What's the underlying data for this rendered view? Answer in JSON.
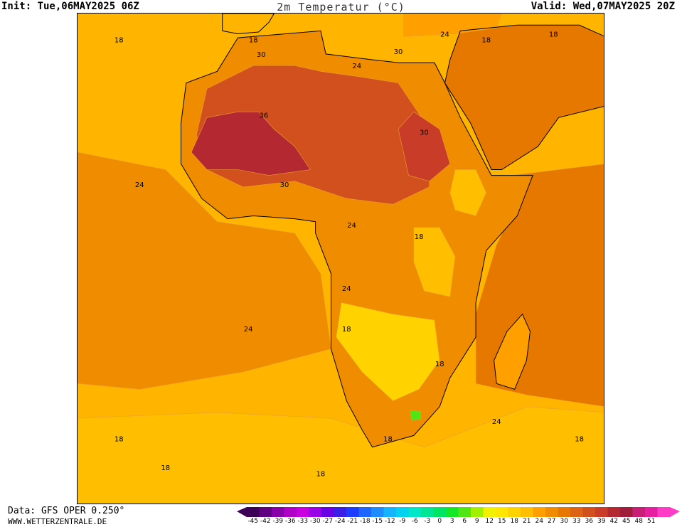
{
  "header": {
    "init": "Init: Tue,06MAY2025 06Z",
    "title": "2m Temperatur (°C)",
    "valid": "Valid: Wed,07MAY2025 20Z"
  },
  "footer": {
    "data_source": "Data: GFS OPER 0.250°",
    "website": "WWW.WETTERZENTRALE.DE"
  },
  "colorbar": {
    "labels": [
      "-45",
      "-42",
      "-39",
      "-36",
      "-33",
      "-30",
      "-27",
      "-24",
      "-21",
      "-18",
      "-15",
      "-12",
      "-9",
      "-6",
      "-3",
      "0",
      "3",
      "6",
      "9",
      "12",
      "15",
      "18",
      "21",
      "24",
      "27",
      "30",
      "33",
      "36",
      "39",
      "42",
      "45",
      "48",
      "51"
    ],
    "colors": [
      "#3d0057",
      "#5e0080",
      "#8a00a8",
      "#b000c8",
      "#c800e0",
      "#9a00e6",
      "#6a00e6",
      "#3a1ee6",
      "#1e3cff",
      "#1e64ff",
      "#1e8cff",
      "#14b4ff",
      "#00d2f0",
      "#00e6c8",
      "#00e696",
      "#00e664",
      "#14e628",
      "#50e614",
      "#a0f000",
      "#f0f000",
      "#ffe600",
      "#ffd200",
      "#ffbe00",
      "#ffa000",
      "#f08c00",
      "#e67800",
      "#dc6414",
      "#d2501e",
      "#c83c28",
      "#b42832",
      "#a01e3c",
      "#c81e78",
      "#e61ea0",
      "#ff3cc8"
    ],
    "under_color": "#3d0057",
    "over_color": "#ff3cc8"
  },
  "map": {
    "ocean_color": "#ffb400",
    "contour_labels": [
      {
        "text": "18",
        "lon": -29,
        "lat": 35
      },
      {
        "text": "18",
        "lon": -3,
        "lat": 35
      },
      {
        "text": "30",
        "lon": -1.5,
        "lat": 32.5
      },
      {
        "text": "24",
        "lon": 17,
        "lat": 30.5
      },
      {
        "text": "30",
        "lon": 25,
        "lat": 33
      },
      {
        "text": "36",
        "lon": -1,
        "lat": 22
      },
      {
        "text": "30",
        "lon": 30,
        "lat": 19
      },
      {
        "text": "24",
        "lon": -25,
        "lat": 10
      },
      {
        "text": "30",
        "lon": 3,
        "lat": 10
      },
      {
        "text": "24",
        "lon": 16,
        "lat": 3
      },
      {
        "text": "18",
        "lon": 29,
        "lat": 1
      },
      {
        "text": "24",
        "lon": 15,
        "lat": -8
      },
      {
        "text": "24",
        "lon": -4,
        "lat": -15
      },
      {
        "text": "18",
        "lon": 15,
        "lat": -15
      },
      {
        "text": "18",
        "lon": 33,
        "lat": -21
      },
      {
        "text": "24",
        "lon": 44,
        "lat": -31
      },
      {
        "text": "18",
        "lon": 23,
        "lat": -34
      },
      {
        "text": "18",
        "lon": -29,
        "lat": -34
      },
      {
        "text": "18",
        "lon": 60,
        "lat": -34
      },
      {
        "text": "18",
        "lon": -20,
        "lat": -39
      },
      {
        "text": "18",
        "lon": 10,
        "lat": -40
      },
      {
        "text": "18",
        "lon": 42,
        "lat": 35
      },
      {
        "text": "24",
        "lon": 34,
        "lat": 36
      },
      {
        "text": "18",
        "lon": 55,
        "lat": 36
      }
    ]
  }
}
